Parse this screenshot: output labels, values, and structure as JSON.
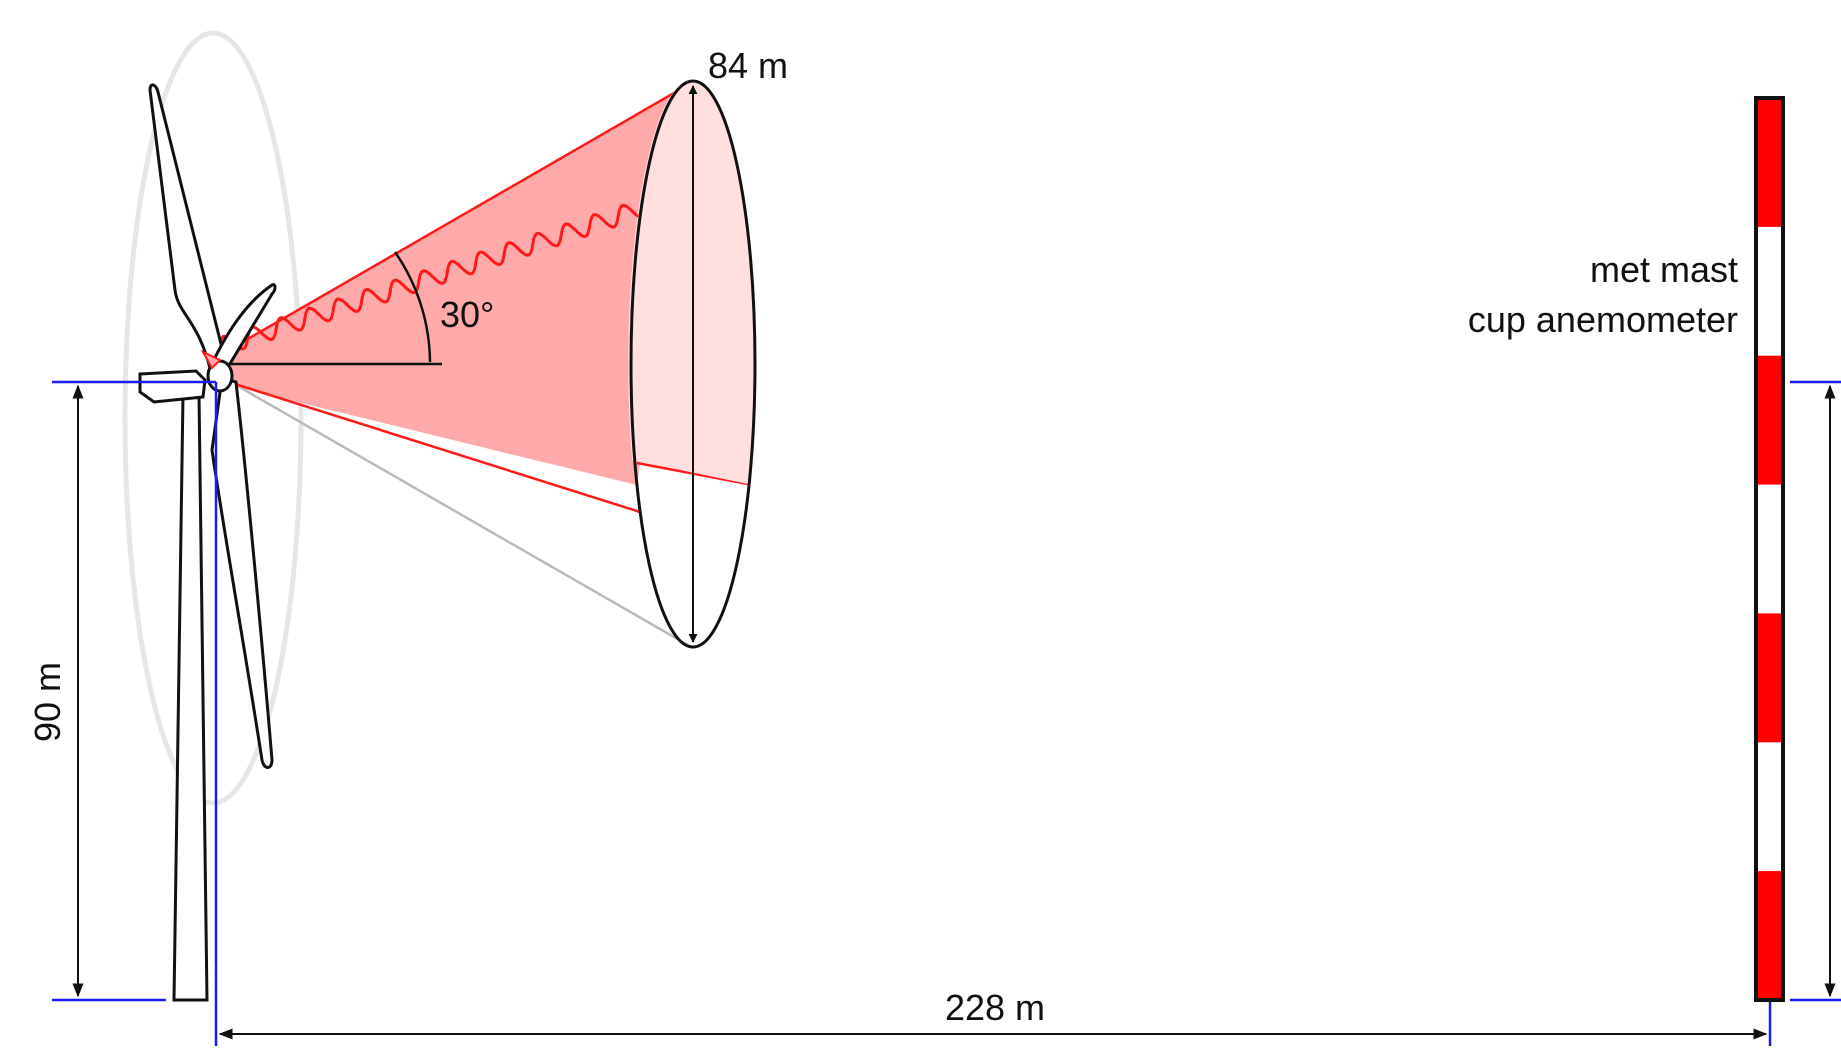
{
  "labels": {
    "beam_diameter": "84 m",
    "cone_angle": "30°",
    "hub_height": "90 m",
    "distance": "228 m",
    "mast_line1": "met mast",
    "mast_line2": "cup anemometer"
  },
  "values": {
    "beam_diameter_m": 84,
    "cone_angle_deg": 30,
    "hub_height_m": 90,
    "distance_m": 228
  },
  "colors": {
    "beam_fill": "#ffaaaa",
    "beam_edge": "#ff1a1a",
    "disc_fill": "#ffdede",
    "dimension_blue": "#1a1aff",
    "mast_red": "#ff0000",
    "rotor_ghost": "#e6e6e6",
    "outline": "#111111"
  }
}
